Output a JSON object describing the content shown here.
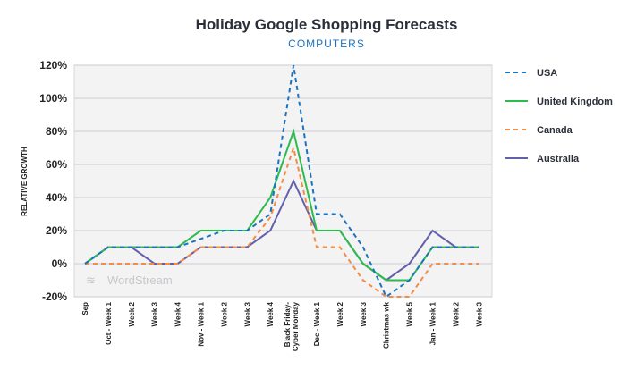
{
  "chart_data": {
    "type": "line",
    "title": "Holiday Google Shopping Forecasts",
    "subtitle": "COMPUTERS",
    "xlabel": "",
    "ylabel": "RELATIVE GROWTH",
    "ylim": [
      -20,
      120
    ],
    "yticks": [
      "120%",
      "100%",
      "80%",
      "60%",
      "40%",
      "20%",
      "0%",
      "-20%"
    ],
    "ytick_values": [
      120,
      100,
      80,
      60,
      40,
      20,
      0,
      -20
    ],
    "grid": true,
    "legend_position": "right",
    "watermark": "WordStream",
    "categories": [
      "Sep",
      "Oct - Week 1",
      "Week 2",
      "Week 3",
      "Week 4",
      "Nov - Week 1",
      "Week 2",
      "Week 3",
      "Week 4",
      "Black Friday-Cyber Monday",
      "Dec - Week 1",
      "Week 2",
      "Week 3",
      "Christmas wk",
      "Week 5",
      "Jan - Week 1",
      "Week 2",
      "Week 3"
    ],
    "series": [
      {
        "name": "USA",
        "color": "#1a73c0",
        "dashed": true,
        "values": [
          0,
          10,
          10,
          10,
          10,
          15,
          20,
          20,
          30,
          120,
          30,
          30,
          10,
          -20,
          -10,
          10,
          10,
          10
        ]
      },
      {
        "name": "United Kingdom",
        "color": "#2dbb4e",
        "dashed": false,
        "values": [
          0,
          10,
          10,
          10,
          10,
          20,
          20,
          20,
          40,
          80,
          20,
          20,
          0,
          -10,
          -10,
          10,
          10,
          10
        ]
      },
      {
        "name": "Canada",
        "color": "#f58b45",
        "dashed": true,
        "values": [
          0,
          0,
          0,
          0,
          0,
          10,
          10,
          10,
          28,
          70,
          10,
          10,
          -10,
          -20,
          -20,
          0,
          0,
          0
        ]
      },
      {
        "name": "Australia",
        "color": "#6360ab",
        "dashed": false,
        "values": [
          0,
          10,
          10,
          0,
          0,
          10,
          10,
          10,
          20,
          50,
          20,
          20,
          0,
          -10,
          0,
          20,
          10,
          10
        ]
      }
    ]
  }
}
